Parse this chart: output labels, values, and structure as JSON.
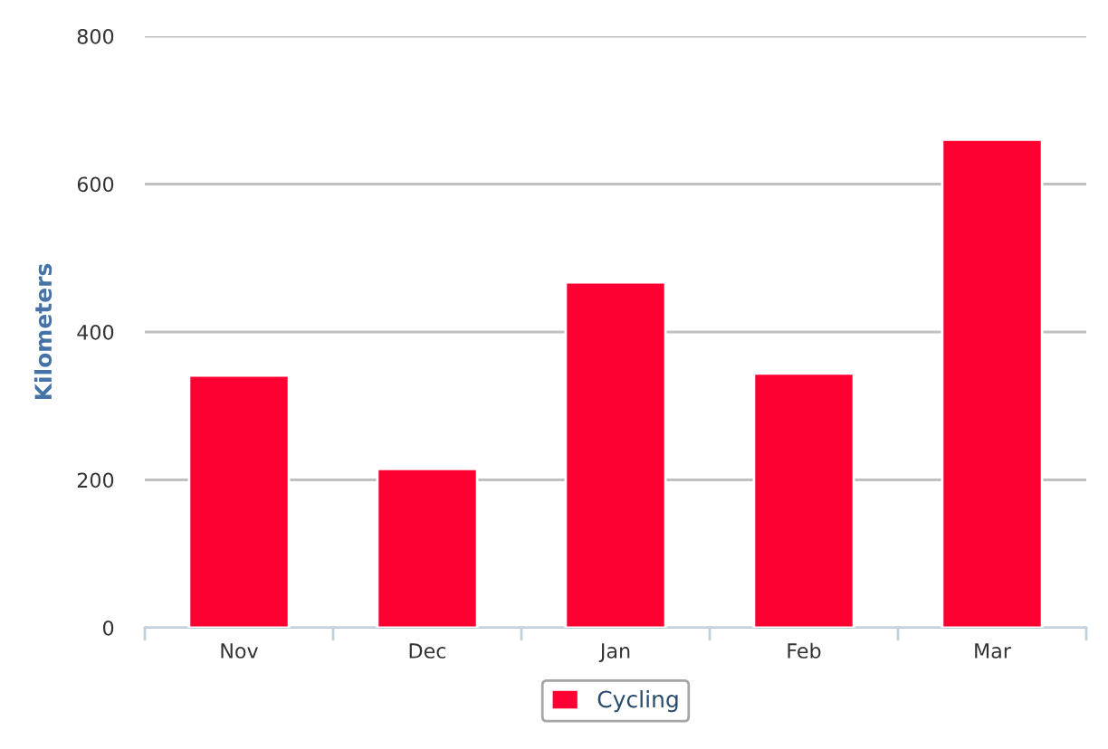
{
  "chart_data": {
    "type": "bar",
    "categories": [
      "Nov",
      "Dec",
      "Jan",
      "Feb",
      "Mar"
    ],
    "series": [
      {
        "name": "Cycling",
        "color": "#ff0033",
        "values": [
          341,
          215,
          467,
          344,
          660
        ]
      }
    ],
    "ylabel": "Kilometers",
    "ylim": [
      0,
      800
    ],
    "yticks": [
      0,
      200,
      400,
      600,
      800
    ],
    "grid": "y",
    "legend": "bottom"
  }
}
